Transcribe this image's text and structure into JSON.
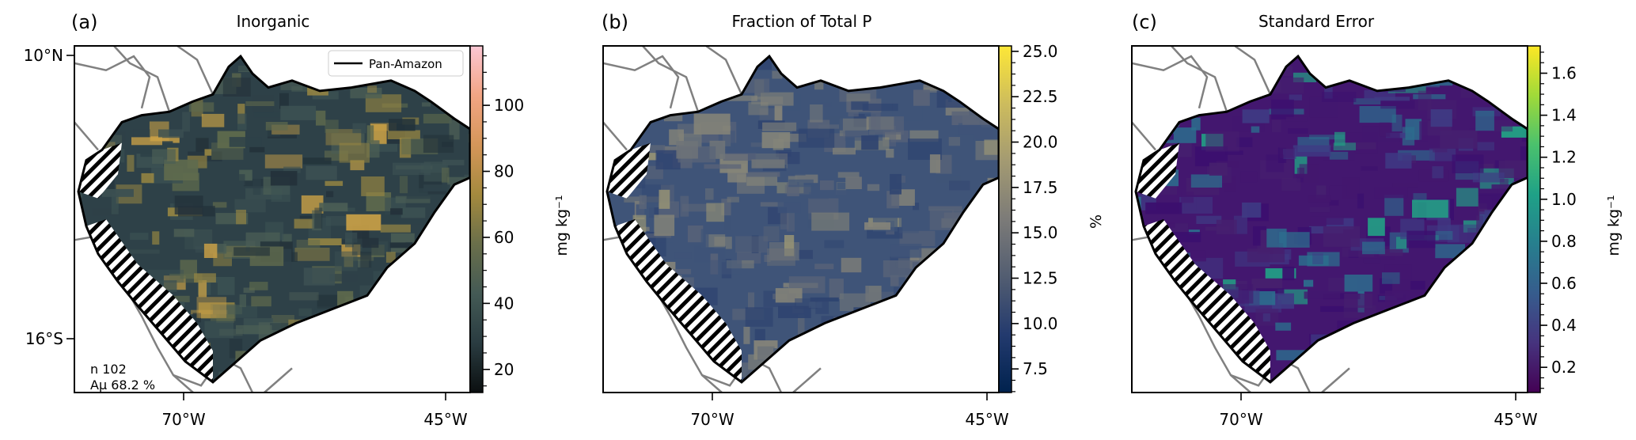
{
  "figure": {
    "panels": [
      {
        "id": "a",
        "letter": "(a)",
        "title": "Inorganic",
        "colorbar": {
          "label": "mg kg⁻¹",
          "ticks": [
            "20",
            "40",
            "60",
            "80",
            "100"
          ],
          "tick_values": [
            20,
            40,
            60,
            80,
            100
          ],
          "range": [
            13,
            118
          ],
          "colors": [
            "#0b0f10",
            "#2a3c41",
            "#445a55",
            "#6a6f4a",
            "#a48a3e",
            "#d59659",
            "#f2a584",
            "#fbc7d4"
          ]
        },
        "legend": {
          "label": "Pan-Amazon"
        },
        "stats": [
          "n 102",
          "Aµ 68.2 %"
        ],
        "map_colors": [
          "#23323a",
          "#2e4148",
          "#3b5052",
          "#4b5e55",
          "#5f6a4d",
          "#9a8842",
          "#c9a046"
        ]
      },
      {
        "id": "b",
        "letter": "(b)",
        "title": "Fraction of Total P",
        "colorbar": {
          "label": "%",
          "ticks": [
            "7.5",
            "10.0",
            "12.5",
            "15.0",
            "17.5",
            "20.0",
            "22.5",
            "25.0"
          ],
          "tick_values": [
            7.5,
            10.0,
            12.5,
            15.0,
            17.5,
            20.0,
            22.5,
            25.0
          ],
          "range": [
            6.2,
            25.3
          ],
          "colors": [
            "#00224e",
            "#233a6e",
            "#525d71",
            "#7c7b78",
            "#a39a72",
            "#cdbc5d",
            "#fde737"
          ]
        },
        "map_colors": [
          "#2f4470",
          "#3f5478",
          "#5a6478",
          "#6f7478",
          "#858479",
          "#9a9575"
        ]
      },
      {
        "id": "c",
        "letter": "(c)",
        "title": "Standard Error",
        "colorbar": {
          "label": "mg kg⁻¹",
          "ticks": [
            "0.2",
            "0.4",
            "0.6",
            "0.8",
            "1.0",
            "1.2",
            "1.4",
            "1.6"
          ],
          "tick_values": [
            0.2,
            0.4,
            0.6,
            0.8,
            1.0,
            1.2,
            1.4,
            1.6
          ],
          "range": [
            0.08,
            1.73
          ],
          "colors": [
            "#440154",
            "#46337e",
            "#365c8d",
            "#277f8e",
            "#1fa187",
            "#4ac16d",
            "#a0da39",
            "#fde725"
          ]
        },
        "map_colors": [
          "#3b0f6f",
          "#43176f",
          "#46206f",
          "#3f3b84",
          "#2c6f8e",
          "#22a185"
        ]
      }
    ],
    "latitude_ticks": [
      "10°N",
      "16°S"
    ],
    "longitude_ticks": [
      "70°W",
      "45°W"
    ]
  }
}
